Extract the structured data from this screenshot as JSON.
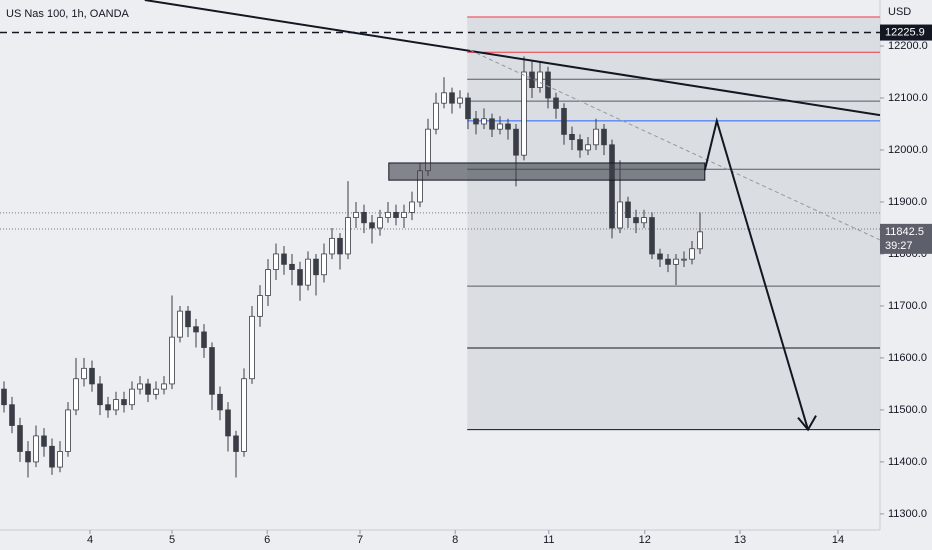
{
  "chart_data": {
    "type": "candlestick",
    "title": "US Nas 100, 1h, OANDA",
    "currency": "USD",
    "xlim": [
      0,
      110
    ],
    "ylim": [
      11269,
      12288.5
    ],
    "yticks": [
      {
        "value": 11300,
        "label": "11300.0"
      },
      {
        "value": 11400,
        "label": "11400.0"
      },
      {
        "value": 11500,
        "label": "11500.0"
      },
      {
        "value": 11600,
        "label": "11600.0"
      },
      {
        "value": 11700,
        "label": "11700.0"
      },
      {
        "value": 11800,
        "label": "11800.0"
      },
      {
        "value": 11900,
        "label": "11900.0"
      },
      {
        "value": 12000,
        "label": "12000.0"
      },
      {
        "value": 12100,
        "label": "12100.0"
      },
      {
        "value": 12200,
        "label": "12200.0"
      }
    ],
    "xticks": [
      {
        "value": 11.25,
        "label": "4"
      },
      {
        "value": 21.5,
        "label": "5"
      },
      {
        "value": 33.4,
        "label": "6"
      },
      {
        "value": 45,
        "label": "7"
      },
      {
        "value": 56.9,
        "label": "8"
      },
      {
        "value": 68.6,
        "label": "11"
      },
      {
        "value": 80.6,
        "label": "12"
      },
      {
        "value": 92.5,
        "label": "13"
      },
      {
        "value": 104.75,
        "label": "14"
      }
    ],
    "up_color": "#ffffff",
    "down_color": "#3a3d45",
    "open": [
      11540,
      11510,
      11470,
      11420,
      11400,
      11450,
      11430,
      11390,
      11420,
      11500,
      11560,
      11580,
      11550,
      11510,
      11500,
      11520,
      11510,
      11540,
      11550,
      11530,
      11540,
      11550,
      11640,
      11690,
      11660,
      11650,
      11620,
      11530,
      11500,
      11450,
      11420,
      11560,
      11680,
      11720,
      11770,
      11800,
      11780,
      11770,
      11740,
      11790,
      11760,
      11800,
      11830,
      11800,
      11870,
      11880,
      11860,
      11850,
      11870,
      11880,
      11870,
      11880,
      11900,
      11960,
      12040,
      12090,
      12110,
      12090,
      12100,
      12060,
      12050,
      12060,
      12040,
      12050,
      12040,
      11990,
      12150,
      12120,
      12150,
      12100,
      12080,
      12030,
      12020,
      12000,
      12010,
      12040,
      12010,
      11850,
      11900,
      11870,
      11860,
      11870,
      11800,
      11790,
      11780,
      11790,
      11790,
      11810
    ],
    "high": [
      11555,
      11525,
      11485,
      11440,
      11470,
      11465,
      11445,
      11440,
      11515,
      11600,
      11600,
      11595,
      11565,
      11525,
      11535,
      11535,
      11555,
      11565,
      11560,
      11555,
      11565,
      11720,
      11700,
      11700,
      11675,
      11665,
      11630,
      11545,
      11515,
      11460,
      11580,
      11700,
      11740,
      11790,
      11820,
      11815,
      11800,
      11785,
      11805,
      11800,
      11820,
      11850,
      11840,
      11940,
      11900,
      11895,
      11875,
      11885,
      11900,
      11895,
      11895,
      11920,
      11975,
      12060,
      12110,
      12140,
      12120,
      12115,
      12110,
      12075,
      12080,
      12070,
      12065,
      12060,
      12050,
      12180,
      12170,
      12170,
      12160,
      12110,
      12090,
      12045,
      12030,
      12025,
      12060,
      12050,
      12020,
      11980,
      11910,
      11885,
      11885,
      11880,
      11810,
      11800,
      11800,
      11805,
      11825,
      11880
    ],
    "low": [
      11495,
      11455,
      11400,
      11370,
      11390,
      11410,
      11375,
      11380,
      11410,
      11490,
      11545,
      11535,
      11490,
      11485,
      11490,
      11495,
      11500,
      11530,
      11515,
      11520,
      11530,
      11540,
      11630,
      11640,
      11620,
      11600,
      11500,
      11480,
      11420,
      11370,
      11410,
      11550,
      11660,
      11700,
      11750,
      11760,
      11740,
      11710,
      11730,
      11720,
      11745,
      11790,
      11770,
      11790,
      11850,
      11840,
      11820,
      11835,
      11860,
      11855,
      11850,
      11865,
      11890,
      11950,
      12030,
      12080,
      12070,
      12080,
      12040,
      12030,
      12040,
      12025,
      12030,
      12020,
      11930,
      11980,
      12100,
      12110,
      12080,
      12060,
      12010,
      12000,
      11985,
      11990,
      12000,
      11990,
      11830,
      11840,
      11850,
      11840,
      11850,
      11790,
      11775,
      11765,
      11740,
      11775,
      11780,
      11800
    ],
    "close": [
      11510,
      11470,
      11420,
      11400,
      11450,
      11430,
      11390,
      11420,
      11500,
      11560,
      11580,
      11550,
      11510,
      11500,
      11520,
      11510,
      11540,
      11550,
      11530,
      11540,
      11550,
      11640,
      11690,
      11660,
      11650,
      11620,
      11530,
      11500,
      11450,
      11420,
      11560,
      11680,
      11720,
      11770,
      11800,
      11780,
      11770,
      11740,
      11790,
      11760,
      11800,
      11830,
      11800,
      11870,
      11880,
      11860,
      11850,
      11870,
      11880,
      11870,
      11880,
      11900,
      11960,
      12040,
      12090,
      12110,
      12090,
      12100,
      12060,
      12050,
      12060,
      12040,
      12050,
      12040,
      11990,
      12150,
      12120,
      12150,
      12100,
      12080,
      12030,
      12020,
      12000,
      12010,
      12040,
      12010,
      11850,
      11900,
      11870,
      11860,
      11870,
      11800,
      11790,
      11780,
      11790,
      11790,
      11810,
      11842.5
    ],
    "marked_level": 12225.9,
    "last_price": 11842.5,
    "countdown": "39:27",
    "price_lines": [
      11879,
      11848
    ],
    "zone": {
      "x": [
        58.4,
        110
      ],
      "y": [
        12255.8,
        11462
      ]
    },
    "levels": [
      {
        "value": 12255.8,
        "color": "#f23645"
      },
      {
        "value": 12188,
        "color": "#f23645"
      },
      {
        "value": 12136,
        "color": "#555a66"
      },
      {
        "value": 12094,
        "color": "#555a66"
      },
      {
        "value": 12056,
        "color": "#2962ff"
      },
      {
        "value": 11963,
        "color": "#555a66"
      },
      {
        "value": 11738,
        "color": "#555a66"
      },
      {
        "value": 11619,
        "color": "#131722"
      },
      {
        "value": 11462,
        "color": "#131722"
      }
    ],
    "box": {
      "x": [
        48.6,
        88.1
      ],
      "y": [
        11975,
        11942
      ]
    },
    "trendline": {
      "x": [
        18.1,
        110
      ],
      "y": [
        12288.5,
        12067
      ]
    },
    "dashed_trend": {
      "x": [
        58.75,
        110
      ],
      "y": [
        12192,
        11827
      ]
    },
    "projection": {
      "x": [
        88.1,
        89.6,
        101
      ],
      "y": [
        11961,
        12056,
        11462
      ]
    }
  }
}
